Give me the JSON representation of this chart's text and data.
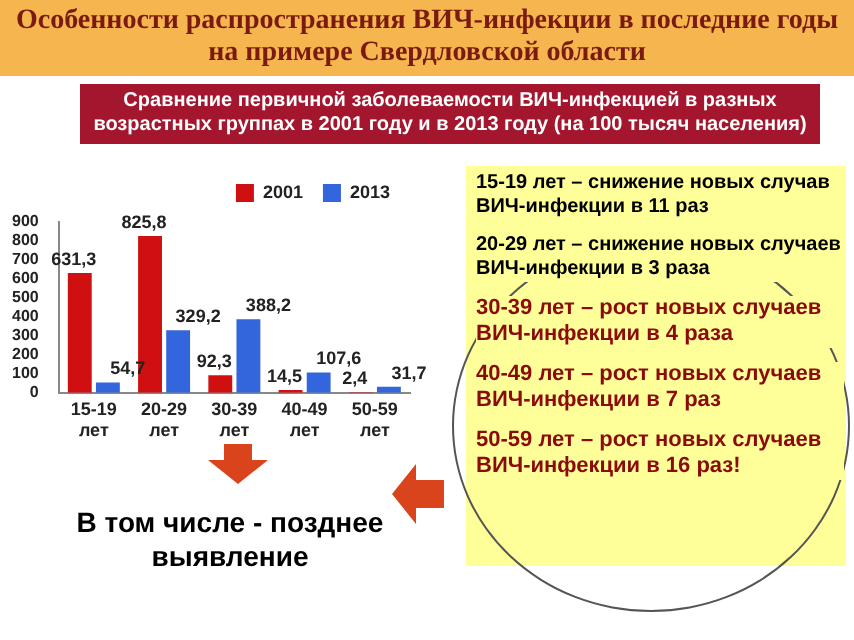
{
  "chart_data": {
    "type": "bar",
    "title": "Особенности распространения ВИЧ-инфекции  в последние годы на примере Свердловской области",
    "subtitle": "Сравнение первичной заболеваемости ВИЧ-инфекцией в разных возрастных группах  в 2001 году и в 2013 году (на 100 тысяч населения)",
    "categories": [
      "15-19 лет",
      "20-29 лет",
      "30-39 лет",
      "40-49 лет",
      "50-59 лет"
    ],
    "series": [
      {
        "name": "2001",
        "color": "#d01010",
        "values": [
          631.3,
          825.8,
          92.3,
          14.5,
          2.4
        ],
        "value_labels": [
          "631,3",
          "825,8",
          "92,3",
          "14,5",
          "2,4"
        ]
      },
      {
        "name": "2013",
        "color": "#3366dd",
        "values": [
          54.7,
          329.2,
          388.2,
          107.6,
          31.7
        ],
        "value_labels": [
          "54,7",
          "329,2",
          "388,2",
          "107,6",
          "31,7"
        ]
      }
    ],
    "ylim": [
      0,
      900
    ],
    "yticks": [
      0,
      100,
      200,
      300,
      400,
      500,
      600,
      700,
      800,
      900
    ],
    "grid": false,
    "legend": "top right",
    "annotations": [
      "15-19 лет – снижение новых случав ВИЧ-инфекции в 11 раз",
      "20-29 лет – снижение новых случаев ВИЧ-инфекции в 3 раза",
      "30-39 лет – рост новых случаев ВИЧ-инфекции в 4 раза",
      "40-49 лет – рост новых случаев ВИЧ-инфекции в 7 раз",
      "50-59 лет – рост новых случаев ВИЧ-инфекции в 16 раз!",
      "В том числе - позднее выявление"
    ]
  }
}
